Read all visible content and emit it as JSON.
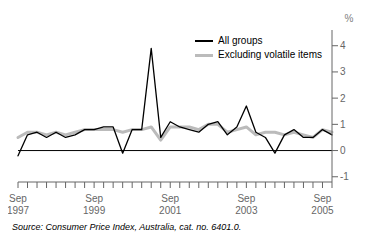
{
  "chart_data": {
    "type": "line",
    "ylabel": "%",
    "annotations": [
      "Source: Consumer Price Index, Australia, cat. no. 6401.0."
    ],
    "categories": [
      "Sep\n1997",
      null,
      null,
      null,
      null,
      null,
      null,
      null,
      "Sep\n1999",
      null,
      null,
      null,
      null,
      null,
      null,
      null,
      "Sep\n2001",
      null,
      null,
      null,
      null,
      null,
      null,
      null,
      "Sep\n2003",
      null,
      null,
      null,
      null,
      null,
      null,
      null,
      "Sep\n2005",
      null
    ],
    "series": [
      {
        "name": "All groups",
        "color": "#000000",
        "values": [
          -0.2,
          0.6,
          0.7,
          0.5,
          0.7,
          0.5,
          0.6,
          0.8,
          0.8,
          0.9,
          0.9,
          -0.1,
          0.8,
          0.8,
          3.9,
          0.5,
          1.1,
          0.9,
          0.8,
          0.7,
          1.0,
          1.1,
          0.6,
          0.9,
          1.7,
          0.7,
          0.5,
          -0.1,
          0.6,
          0.8,
          0.5,
          0.5,
          0.8,
          0.6
        ]
      },
      {
        "name": "Excluding volatile items",
        "color": "#bbbbbb",
        "values": [
          0.5,
          0.7,
          0.7,
          0.6,
          0.7,
          0.6,
          0.7,
          0.8,
          0.8,
          0.8,
          0.8,
          0.7,
          0.8,
          0.8,
          0.9,
          0.4,
          0.9,
          0.9,
          0.9,
          0.8,
          1.0,
          1.0,
          0.7,
          0.8,
          0.9,
          0.6,
          0.7,
          0.7,
          0.6,
          0.7,
          0.6,
          0.5,
          0.8,
          0.7
        ]
      }
    ],
    "ylim": [
      -1.2,
      4.6
    ],
    "yticks": [
      -1,
      0,
      1,
      2,
      3,
      4
    ],
    "grid": false,
    "legend": "upper right"
  }
}
